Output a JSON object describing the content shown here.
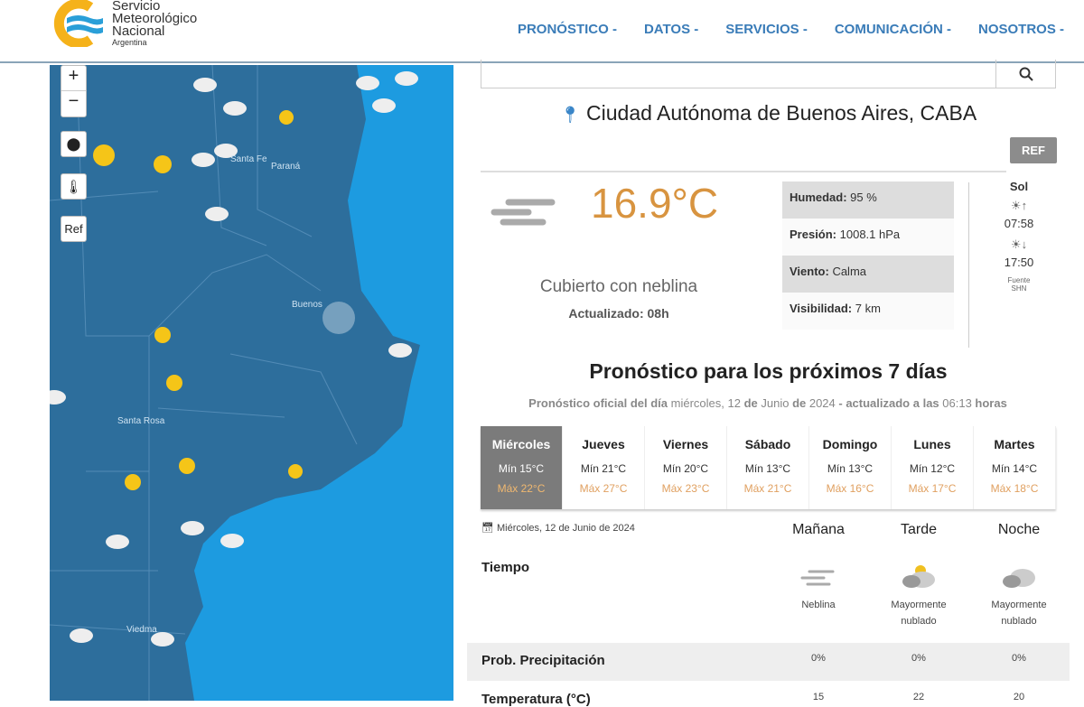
{
  "header": {
    "logo": {
      "line1": "Servicio",
      "line2": "Meteorológico",
      "line3": "Nacional",
      "line4": "Argentina"
    },
    "nav": [
      "PRONÓSTICO -",
      "DATOS -",
      "SERVICIOS -",
      "COMUNICACIÓN -",
      "NOSOTROS -"
    ]
  },
  "map": {
    "controls": {
      "zoom_in": "+",
      "zoom_out": "−",
      "ref": "Ref"
    },
    "labels": [
      "Santa Fe",
      "Paraná",
      "Buenos",
      "Santa Rosa",
      "Viedma"
    ],
    "colors": {
      "ocean": "#1d9be0",
      "land": "#2d6e9c"
    }
  },
  "current": {
    "city": "Ciudad Autónoma de Buenos Aires, CABA",
    "ref_button": "REF",
    "temperature": "16.9°C",
    "description": "Cubierto con neblina",
    "updated": "Actualizado: 08h",
    "stats": [
      {
        "label": "Humedad:",
        "value": " 95 %"
      },
      {
        "label": "Presión:",
        "value": " 1008.1 hPa"
      },
      {
        "label": "Viento:",
        "value": " Calma"
      },
      {
        "label": "Visibilidad:",
        "value": " 7 km"
      }
    ],
    "sun": {
      "title": "Sol",
      "sunrise": "07:58",
      "sunset": "17:50",
      "source": "Fuente",
      "source_name": "SHN"
    }
  },
  "forecast": {
    "title": "Pronóstico para los próximos 7 días",
    "subtitle": {
      "a": "Pronóstico oficial del día",
      "b": " miércoles, 12 ",
      "c": "de",
      "d": " Junio ",
      "e": "de",
      "f": " 2024 ",
      "g": "- actualizado a las",
      "h": " 06:13 ",
      "i": "horas"
    },
    "days": [
      {
        "name": "Miércoles",
        "min": "Mín 15°C",
        "max": "Máx 22°C"
      },
      {
        "name": "Jueves",
        "min": "Mín 21°C",
        "max": "Máx 27°C"
      },
      {
        "name": "Viernes",
        "min": "Mín 20°C",
        "max": "Máx 23°C"
      },
      {
        "name": "Sábado",
        "min": "Mín 13°C",
        "max": "Máx 21°C"
      },
      {
        "name": "Domingo",
        "min": "Mín 13°C",
        "max": "Máx 16°C"
      },
      {
        "name": "Lunes",
        "min": "Mín 12°C",
        "max": "Máx 17°C"
      },
      {
        "name": "Martes",
        "min": "Mín 14°C",
        "max": "Máx 18°C"
      }
    ],
    "detail": {
      "date": "Miércoles, 12 de Junio de 2024",
      "periods": [
        "Mañana",
        "Tarde",
        "Noche"
      ],
      "tiempo_label": "Tiempo",
      "tiempo": [
        "Neblina",
        "Mayormente nublado",
        "Mayormente nublado"
      ],
      "precip_label": "Prob. Precipitación",
      "precip": [
        "0%",
        "0%",
        "0%"
      ],
      "temp_label": "Temperatura (°C)",
      "temp": [
        "15",
        "22",
        "20"
      ]
    }
  }
}
